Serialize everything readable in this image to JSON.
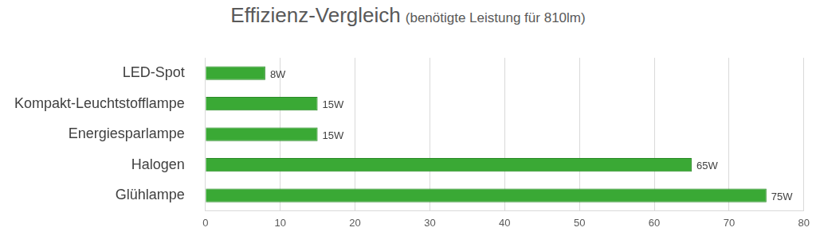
{
  "chart_data": {
    "type": "bar",
    "orientation": "horizontal",
    "title": "Effizienz-Vergleich",
    "subtitle": "(benötigte Leistung für 810lm)",
    "categories": [
      "LED-Spot",
      "Kompakt-Leuchtstofflampe",
      "Energiesparlampe",
      "Halogen",
      "Glühlampe"
    ],
    "values": [
      8,
      15,
      15,
      65,
      75
    ],
    "value_labels": [
      "8W",
      "15W",
      "15W",
      "65W",
      "75W"
    ],
    "data_labels": true,
    "color": "#3aa935",
    "xlim": [
      0,
      80
    ],
    "xticks": [
      0,
      10,
      20,
      30,
      40,
      50,
      60,
      70,
      80
    ],
    "grid": true
  }
}
